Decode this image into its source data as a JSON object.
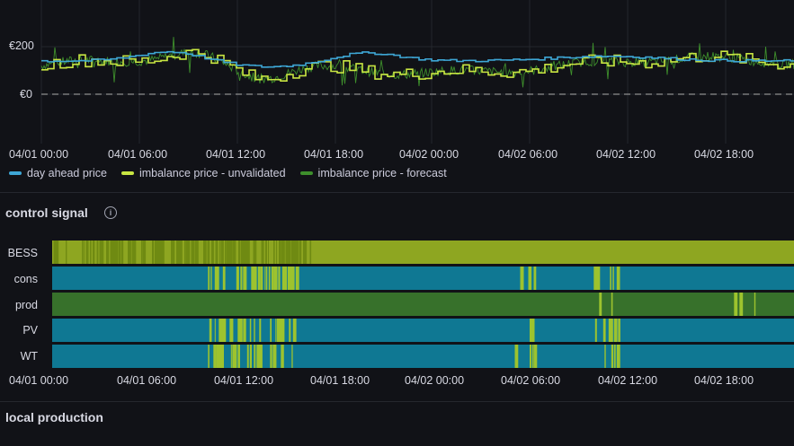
{
  "colors": {
    "background": "#111217",
    "day_ahead": "#3ea7d6",
    "imbalance_unvalidated": "#c8e542",
    "imbalance_forecast": "#3e8f2c",
    "bess": "#8ea621",
    "cons": "#0f7893",
    "prod": "#37712b",
    "pv": "#0f7893",
    "wt": "#0f7893",
    "alt_state": "#9dc32e"
  },
  "price_panel": {
    "y_ticks": [
      "€200",
      "€0"
    ],
    "x_ticks": [
      "04/01 00:00",
      "04/01 06:00",
      "04/01 12:00",
      "04/01 18:00",
      "04/02 00:00",
      "04/02 06:00",
      "04/02 12:00",
      "04/02 18:00"
    ],
    "legend": [
      {
        "label": "day ahead price",
        "color": "#3ea7d6"
      },
      {
        "label": "imbalance price - unvalidated",
        "color": "#c8e542"
      },
      {
        "label": "imbalance price - forecast",
        "color": "#3e8f2c"
      }
    ]
  },
  "control_signal_panel": {
    "title": "control signal",
    "info_icon": "info-icon",
    "rows": [
      "BESS",
      "cons",
      "prod",
      "PV",
      "WT"
    ],
    "x_ticks": [
      "04/01 00:00",
      "04/01 06:00",
      "04/01 12:00",
      "04/01 18:00",
      "04/02 00:00",
      "04/02 06:00",
      "04/02 12:00",
      "04/02 18:00"
    ]
  },
  "local_production_panel": {
    "title": "local production"
  }
}
